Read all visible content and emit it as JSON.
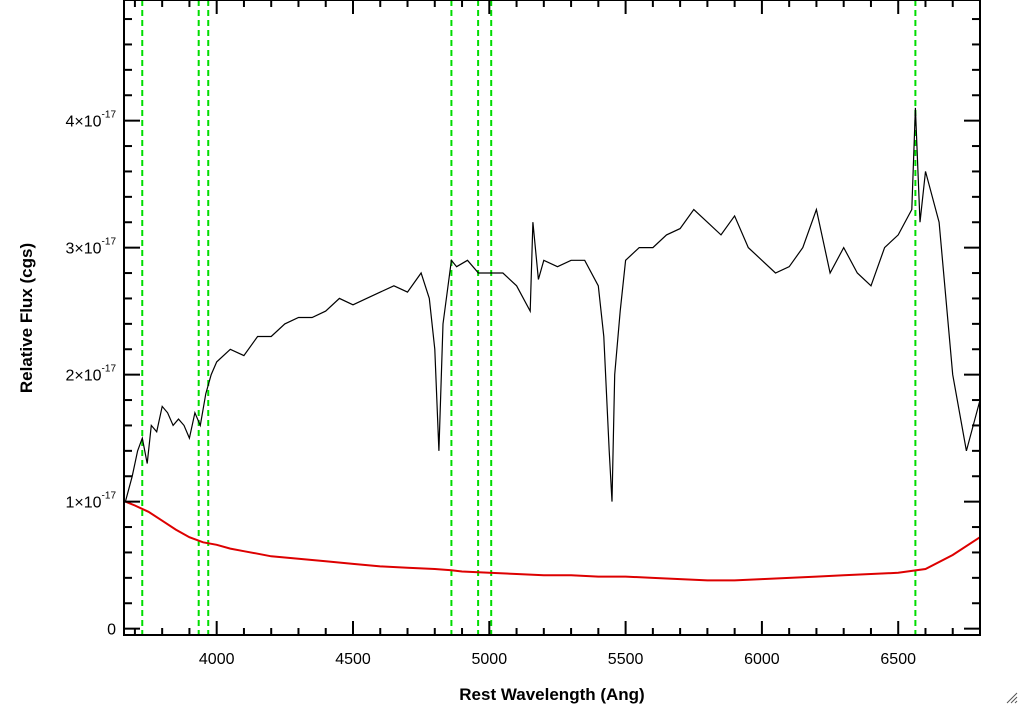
{
  "chart_data": {
    "type": "line",
    "xlabel": "Rest Wavelength (Ang)",
    "ylabel": "Relative Flux (cgs)",
    "xlim": [
      3660,
      6800
    ],
    "ylim": [
      -5e-19,
      4.95e-17
    ],
    "x_ticks": [
      4000,
      4500,
      5000,
      5500,
      6000,
      6500
    ],
    "x_tick_labels": [
      "4000",
      "4500",
      "5000",
      "5500",
      "6000",
      "6500"
    ],
    "y_ticks": [
      0,
      1e-17,
      2e-17,
      3e-17,
      4e-17
    ],
    "y_tick_labels": [
      {
        "mantissa": "0",
        "exponent": ""
      },
      {
        "mantissa": "1×10",
        "exponent": "-17"
      },
      {
        "mantissa": "2×10",
        "exponent": "-17"
      },
      {
        "mantissa": "3×10",
        "exponent": "-17"
      },
      {
        "mantissa": "4×10",
        "exponent": "-17"
      }
    ],
    "grid": false,
    "series": [
      {
        "color": "#000000",
        "style": "solid",
        "x": [
          3665,
          3690,
          3710,
          3727,
          3745,
          3760,
          3780,
          3800,
          3820,
          3840,
          3860,
          3880,
          3900,
          3920,
          3940,
          3960,
          3980,
          4000,
          4050,
          4100,
          4150,
          4200,
          4250,
          4300,
          4350,
          4400,
          4450,
          4500,
          4550,
          4600,
          4650,
          4700,
          4750,
          4780,
          4800,
          4815,
          4830,
          4861,
          4880,
          4920,
          4960,
          5000,
          5050,
          5100,
          5150,
          5160,
          5180,
          5200,
          5250,
          5300,
          5350,
          5400,
          5420,
          5440,
          5450,
          5460,
          5480,
          5500,
          5550,
          5600,
          5650,
          5700,
          5750,
          5800,
          5850,
          5900,
          5950,
          6000,
          6050,
          6100,
          6150,
          6200,
          6250,
          6300,
          6350,
          6400,
          6450,
          6500,
          6550,
          6563,
          6580,
          6600,
          6650,
          6700,
          6750,
          6800
        ],
        "y": [
          1e-17,
          1.2e-17,
          1.4e-17,
          1.5e-17,
          1.3e-17,
          1.6e-17,
          1.55e-17,
          1.75e-17,
          1.7e-17,
          1.6e-17,
          1.65e-17,
          1.6e-17,
          1.5e-17,
          1.7e-17,
          1.6e-17,
          1.85e-17,
          2e-17,
          2.1e-17,
          2.2e-17,
          2.15e-17,
          2.3e-17,
          2.3e-17,
          2.4e-17,
          2.45e-17,
          2.45e-17,
          2.5e-17,
          2.6e-17,
          2.55e-17,
          2.6e-17,
          2.65e-17,
          2.7e-17,
          2.65e-17,
          2.8e-17,
          2.6e-17,
          2.2e-17,
          1.4e-17,
          2.4e-17,
          2.9e-17,
          2.85e-17,
          2.9e-17,
          2.8e-17,
          2.8e-17,
          2.8e-17,
          2.7e-17,
          2.5e-17,
          3.2e-17,
          2.75e-17,
          2.9e-17,
          2.85e-17,
          2.9e-17,
          2.9e-17,
          2.7e-17,
          2.3e-17,
          1.4e-17,
          1e-17,
          2e-17,
          2.5e-17,
          2.9e-17,
          3e-17,
          3e-17,
          3.1e-17,
          3.15e-17,
          3.3e-17,
          3.2e-17,
          3.1e-17,
          3.25e-17,
          3e-17,
          2.9e-17,
          2.8e-17,
          2.85e-17,
          3e-17,
          3.3e-17,
          2.8e-17,
          3e-17,
          2.8e-17,
          2.7e-17,
          3e-17,
          3.1e-17,
          3.3e-17,
          4.1e-17,
          3.2e-17,
          3.6e-17,
          3.2e-17,
          2e-17,
          1.4e-17,
          1.8e-17
        ]
      },
      {
        "color": "#dd0000",
        "style": "solid",
        "x": [
          3665,
          3700,
          3750,
          3800,
          3850,
          3900,
          3950,
          4000,
          4050,
          4100,
          4150,
          4200,
          4300,
          4400,
          4500,
          4600,
          4700,
          4800,
          4861,
          4900,
          5000,
          5100,
          5200,
          5300,
          5400,
          5500,
          5600,
          5700,
          5800,
          5900,
          6000,
          6100,
          6200,
          6300,
          6400,
          6500,
          6600,
          6700,
          6800
        ],
        "y": [
          1e-17,
          9.7e-18,
          9.2e-18,
          8.5e-18,
          7.8e-18,
          7.2e-18,
          6.8e-18,
          6.6e-18,
          6.3e-18,
          6.1e-18,
          5.9e-18,
          5.7e-18,
          5.5e-18,
          5.3e-18,
          5.1e-18,
          4.9e-18,
          4.8e-18,
          4.7e-18,
          4.6e-18,
          4.5e-18,
          4.4e-18,
          4.3e-18,
          4.2e-18,
          4.2e-18,
          4.1e-18,
          4.1e-18,
          4e-18,
          3.9e-18,
          3.8e-18,
          3.8e-18,
          3.9e-18,
          4e-18,
          4.1e-18,
          4.2e-18,
          4.3e-18,
          4.4e-18,
          4.7e-18,
          5.8e-18,
          7.2e-18
        ]
      }
    ],
    "vertical_lines": {
      "color": "#00dd00",
      "style": "dashed",
      "x": [
        3727,
        3934,
        3969,
        4861,
        4959,
        5007,
        6563
      ]
    }
  }
}
